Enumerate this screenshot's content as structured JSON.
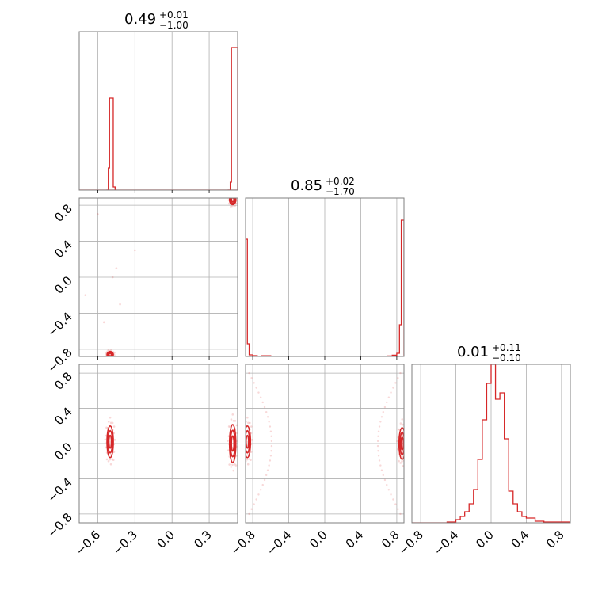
{
  "chart_data": [
    {
      "type": "histogram",
      "panel": "1-1",
      "title": {
        "value": "0.49",
        "upper": "+0.01",
        "lower": "−1.00"
      },
      "x_ticks": [
        "−0.6",
        "−0.3",
        "0.0",
        "0.3"
      ],
      "xlim": [
        -0.75,
        0.53
      ],
      "bins": {
        "edges": [
          -0.75,
          0.53
        ],
        "counts_note": "two modes"
      },
      "series": [
        {
          "x": [
            -0.52,
            -0.51,
            -0.5,
            -0.49,
            -0.48,
            -0.47
          ],
          "y": [
            0.0,
            0.14,
            0.59,
            0.59,
            0.02,
            0.0
          ]
        },
        {
          "x": [
            0.46,
            0.47,
            0.48,
            0.49,
            0.5,
            0.51
          ],
          "y": [
            0.0,
            0.05,
            0.9,
            0.9,
            0.0,
            0.0
          ]
        }
      ]
    },
    {
      "type": "histogram",
      "panel": "2-2",
      "title": {
        "value": "0.85",
        "upper": "+0.02",
        "lower": "−1.70"
      },
      "xlim": [
        -0.88,
        0.88
      ],
      "series": [
        {
          "x": [
            -0.88,
            -0.86,
            -0.84,
            -0.8,
            -0.7,
            -0.5,
            0.0,
            0.7,
            0.8,
            0.84,
            0.86,
            0.88
          ],
          "y": [
            0.74,
            0.08,
            0.01,
            0.005,
            0.003,
            0.002,
            0.001,
            0.003,
            0.01,
            0.2,
            0.86,
            0.86
          ]
        }
      ]
    },
    {
      "type": "histogram",
      "panel": "3-3",
      "title": {
        "value": "0.01",
        "upper": "+0.11",
        "lower": "−0.10"
      },
      "x_ticks": [
        "−0.8",
        "−0.4",
        "0.0",
        "0.4",
        "0.8"
      ],
      "xlim": [
        -0.9,
        0.9
      ],
      "series": [
        {
          "x": [
            -0.9,
            -0.5,
            -0.4,
            -0.35,
            -0.3,
            -0.25,
            -0.2,
            -0.15,
            -0.1,
            -0.05,
            0.0,
            0.05,
            0.1,
            0.15,
            0.2,
            0.25,
            0.3,
            0.35,
            0.4,
            0.5,
            0.6,
            0.9
          ],
          "y": [
            0.0,
            0.005,
            0.02,
            0.04,
            0.07,
            0.12,
            0.21,
            0.4,
            0.65,
            0.88,
            1.0,
            0.78,
            0.82,
            0.53,
            0.2,
            0.12,
            0.07,
            0.04,
            0.03,
            0.01,
            0.005,
            0.0
          ]
        }
      ]
    },
    {
      "type": "scatter",
      "panel": "2-1",
      "y_ticks": [
        "0.8",
        "0.4",
        "0.0",
        "−0.4",
        "−0.8"
      ],
      "xlim": [
        -0.75,
        0.53
      ],
      "ylim": [
        -0.88,
        0.88
      ],
      "clusters": [
        {
          "x": 0.49,
          "y": 0.85
        },
        {
          "x": -0.5,
          "y": -0.85
        }
      ],
      "sparse_points": [
        [
          -0.6,
          0.7
        ],
        [
          -0.3,
          0.3
        ],
        [
          -0.45,
          0.1
        ],
        [
          -0.7,
          -0.2
        ],
        [
          -0.55,
          -0.5
        ],
        [
          -0.42,
          -0.3
        ],
        [
          -0.48,
          0.0
        ]
      ]
    },
    {
      "type": "scatter",
      "panel": "3-1",
      "y_ticks": [
        "0.8",
        "0.4",
        "0.0",
        "−0.4",
        "−0.8"
      ],
      "xlim": [
        -0.75,
        0.53
      ],
      "ylim": [
        -0.9,
        0.9
      ],
      "clusters": [
        {
          "x": -0.5,
          "y": 0.0
        },
        {
          "x": 0.49,
          "y": 0.0
        }
      ]
    },
    {
      "type": "scatter",
      "panel": "3-2",
      "x_ticks": [
        "−0.8",
        "−0.4",
        "0.0",
        "0.4",
        "0.8"
      ],
      "xlim": [
        -0.88,
        0.88
      ],
      "ylim": [
        -0.9,
        0.9
      ],
      "clusters": [
        {
          "x": -0.86,
          "y": 0.0
        },
        {
          "x": 0.86,
          "y": 0.0
        }
      ]
    }
  ]
}
